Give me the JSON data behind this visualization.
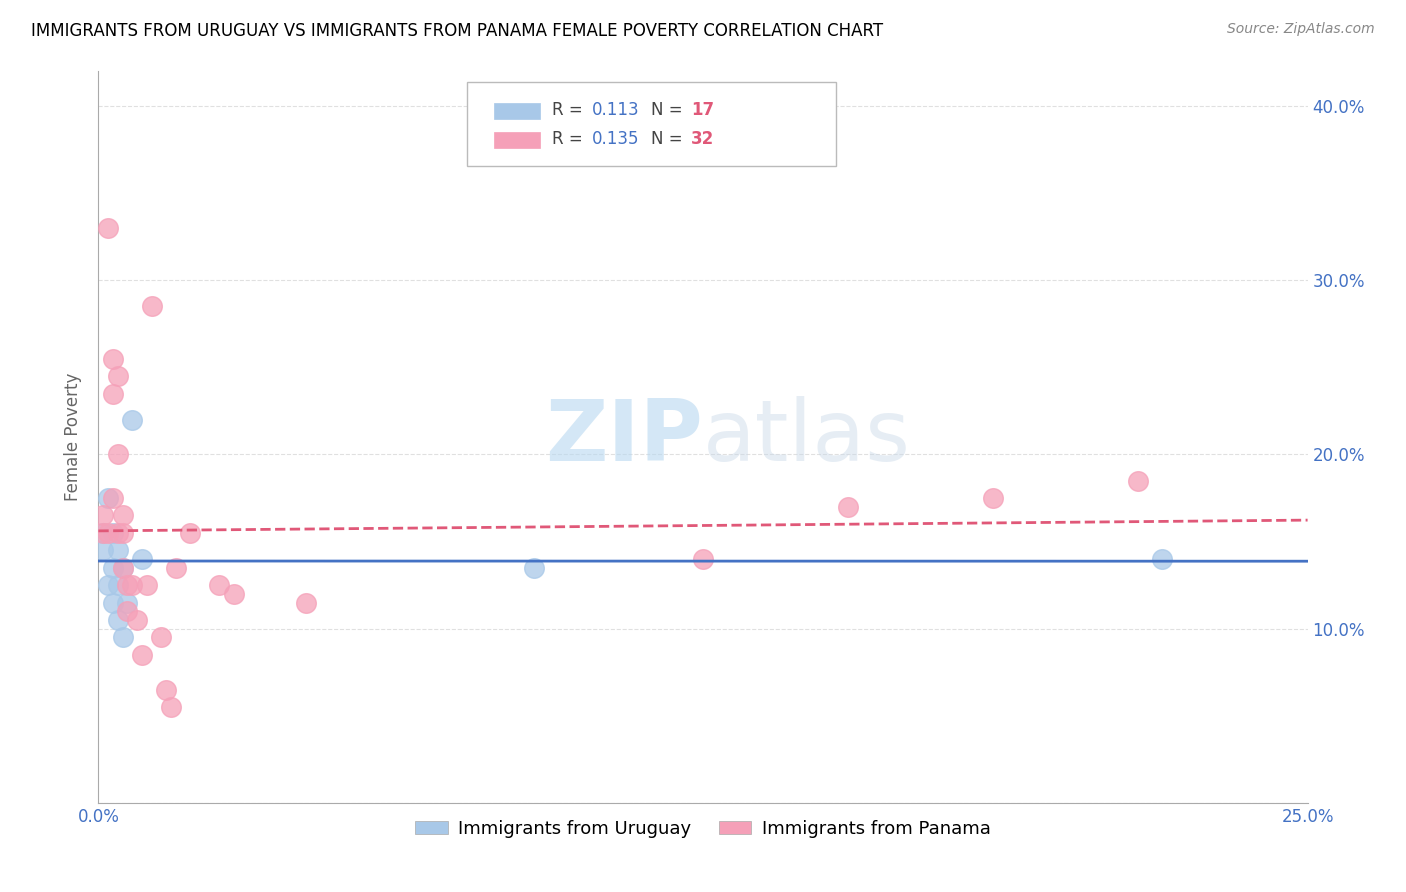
{
  "title": "IMMIGRANTS FROM URUGUAY VS IMMIGRANTS FROM PANAMA FEMALE POVERTY CORRELATION CHART",
  "source": "Source: ZipAtlas.com",
  "ylabel": "Female Poverty",
  "xlim": [
    0.0,
    0.25
  ],
  "ylim": [
    0.0,
    0.42
  ],
  "xticks": [
    0.0,
    0.05,
    0.1,
    0.15,
    0.2,
    0.25
  ],
  "xticklabels": [
    "0.0%",
    "",
    "",
    "",
    "",
    "25.0%"
  ],
  "yticks_left": [
    0.0,
    0.1,
    0.2,
    0.3,
    0.4
  ],
  "yticklabels_left": [
    "",
    "",
    "",
    "",
    ""
  ],
  "yticks_right": [
    0.0,
    0.1,
    0.2,
    0.3,
    0.4
  ],
  "yticklabels_right": [
    "",
    "10.0%",
    "20.0%",
    "30.0%",
    "40.0%"
  ],
  "uruguay_color": "#a8c8e8",
  "panama_color": "#f5a0b8",
  "trend_uruguay_color": "#4472c4",
  "trend_panama_color": "#e05878",
  "watermark_zip": "ZIP",
  "watermark_atlas": "atlas",
  "legend_r_uruguay": "0.113",
  "legend_n_uruguay": "17",
  "legend_r_panama": "0.135",
  "legend_n_panama": "32",
  "legend_r_color": "#4472c4",
  "legend_n_color": "#e05878",
  "uruguay_x": [
    0.001,
    0.001,
    0.002,
    0.002,
    0.003,
    0.003,
    0.003,
    0.004,
    0.004,
    0.004,
    0.005,
    0.005,
    0.006,
    0.007,
    0.009,
    0.09,
    0.22
  ],
  "uruguay_y": [
    0.155,
    0.145,
    0.175,
    0.125,
    0.155,
    0.135,
    0.115,
    0.145,
    0.125,
    0.105,
    0.135,
    0.095,
    0.115,
    0.22,
    0.14,
    0.135,
    0.14
  ],
  "panama_x": [
    0.001,
    0.001,
    0.002,
    0.002,
    0.003,
    0.003,
    0.003,
    0.004,
    0.004,
    0.004,
    0.005,
    0.005,
    0.005,
    0.006,
    0.006,
    0.007,
    0.008,
    0.009,
    0.01,
    0.011,
    0.013,
    0.014,
    0.015,
    0.016,
    0.019,
    0.025,
    0.028,
    0.043,
    0.125,
    0.155,
    0.185,
    0.215
  ],
  "panama_y": [
    0.165,
    0.155,
    0.33,
    0.155,
    0.255,
    0.235,
    0.175,
    0.245,
    0.2,
    0.155,
    0.165,
    0.155,
    0.135,
    0.125,
    0.11,
    0.125,
    0.105,
    0.085,
    0.125,
    0.285,
    0.095,
    0.065,
    0.055,
    0.135,
    0.155,
    0.125,
    0.12,
    0.115,
    0.14,
    0.17,
    0.175,
    0.185
  ],
  "grid_color": "#dddddd",
  "tick_color": "#4472c4",
  "title_fontsize": 12,
  "source_fontsize": 10,
  "tick_fontsize": 12,
  "ylabel_fontsize": 12
}
